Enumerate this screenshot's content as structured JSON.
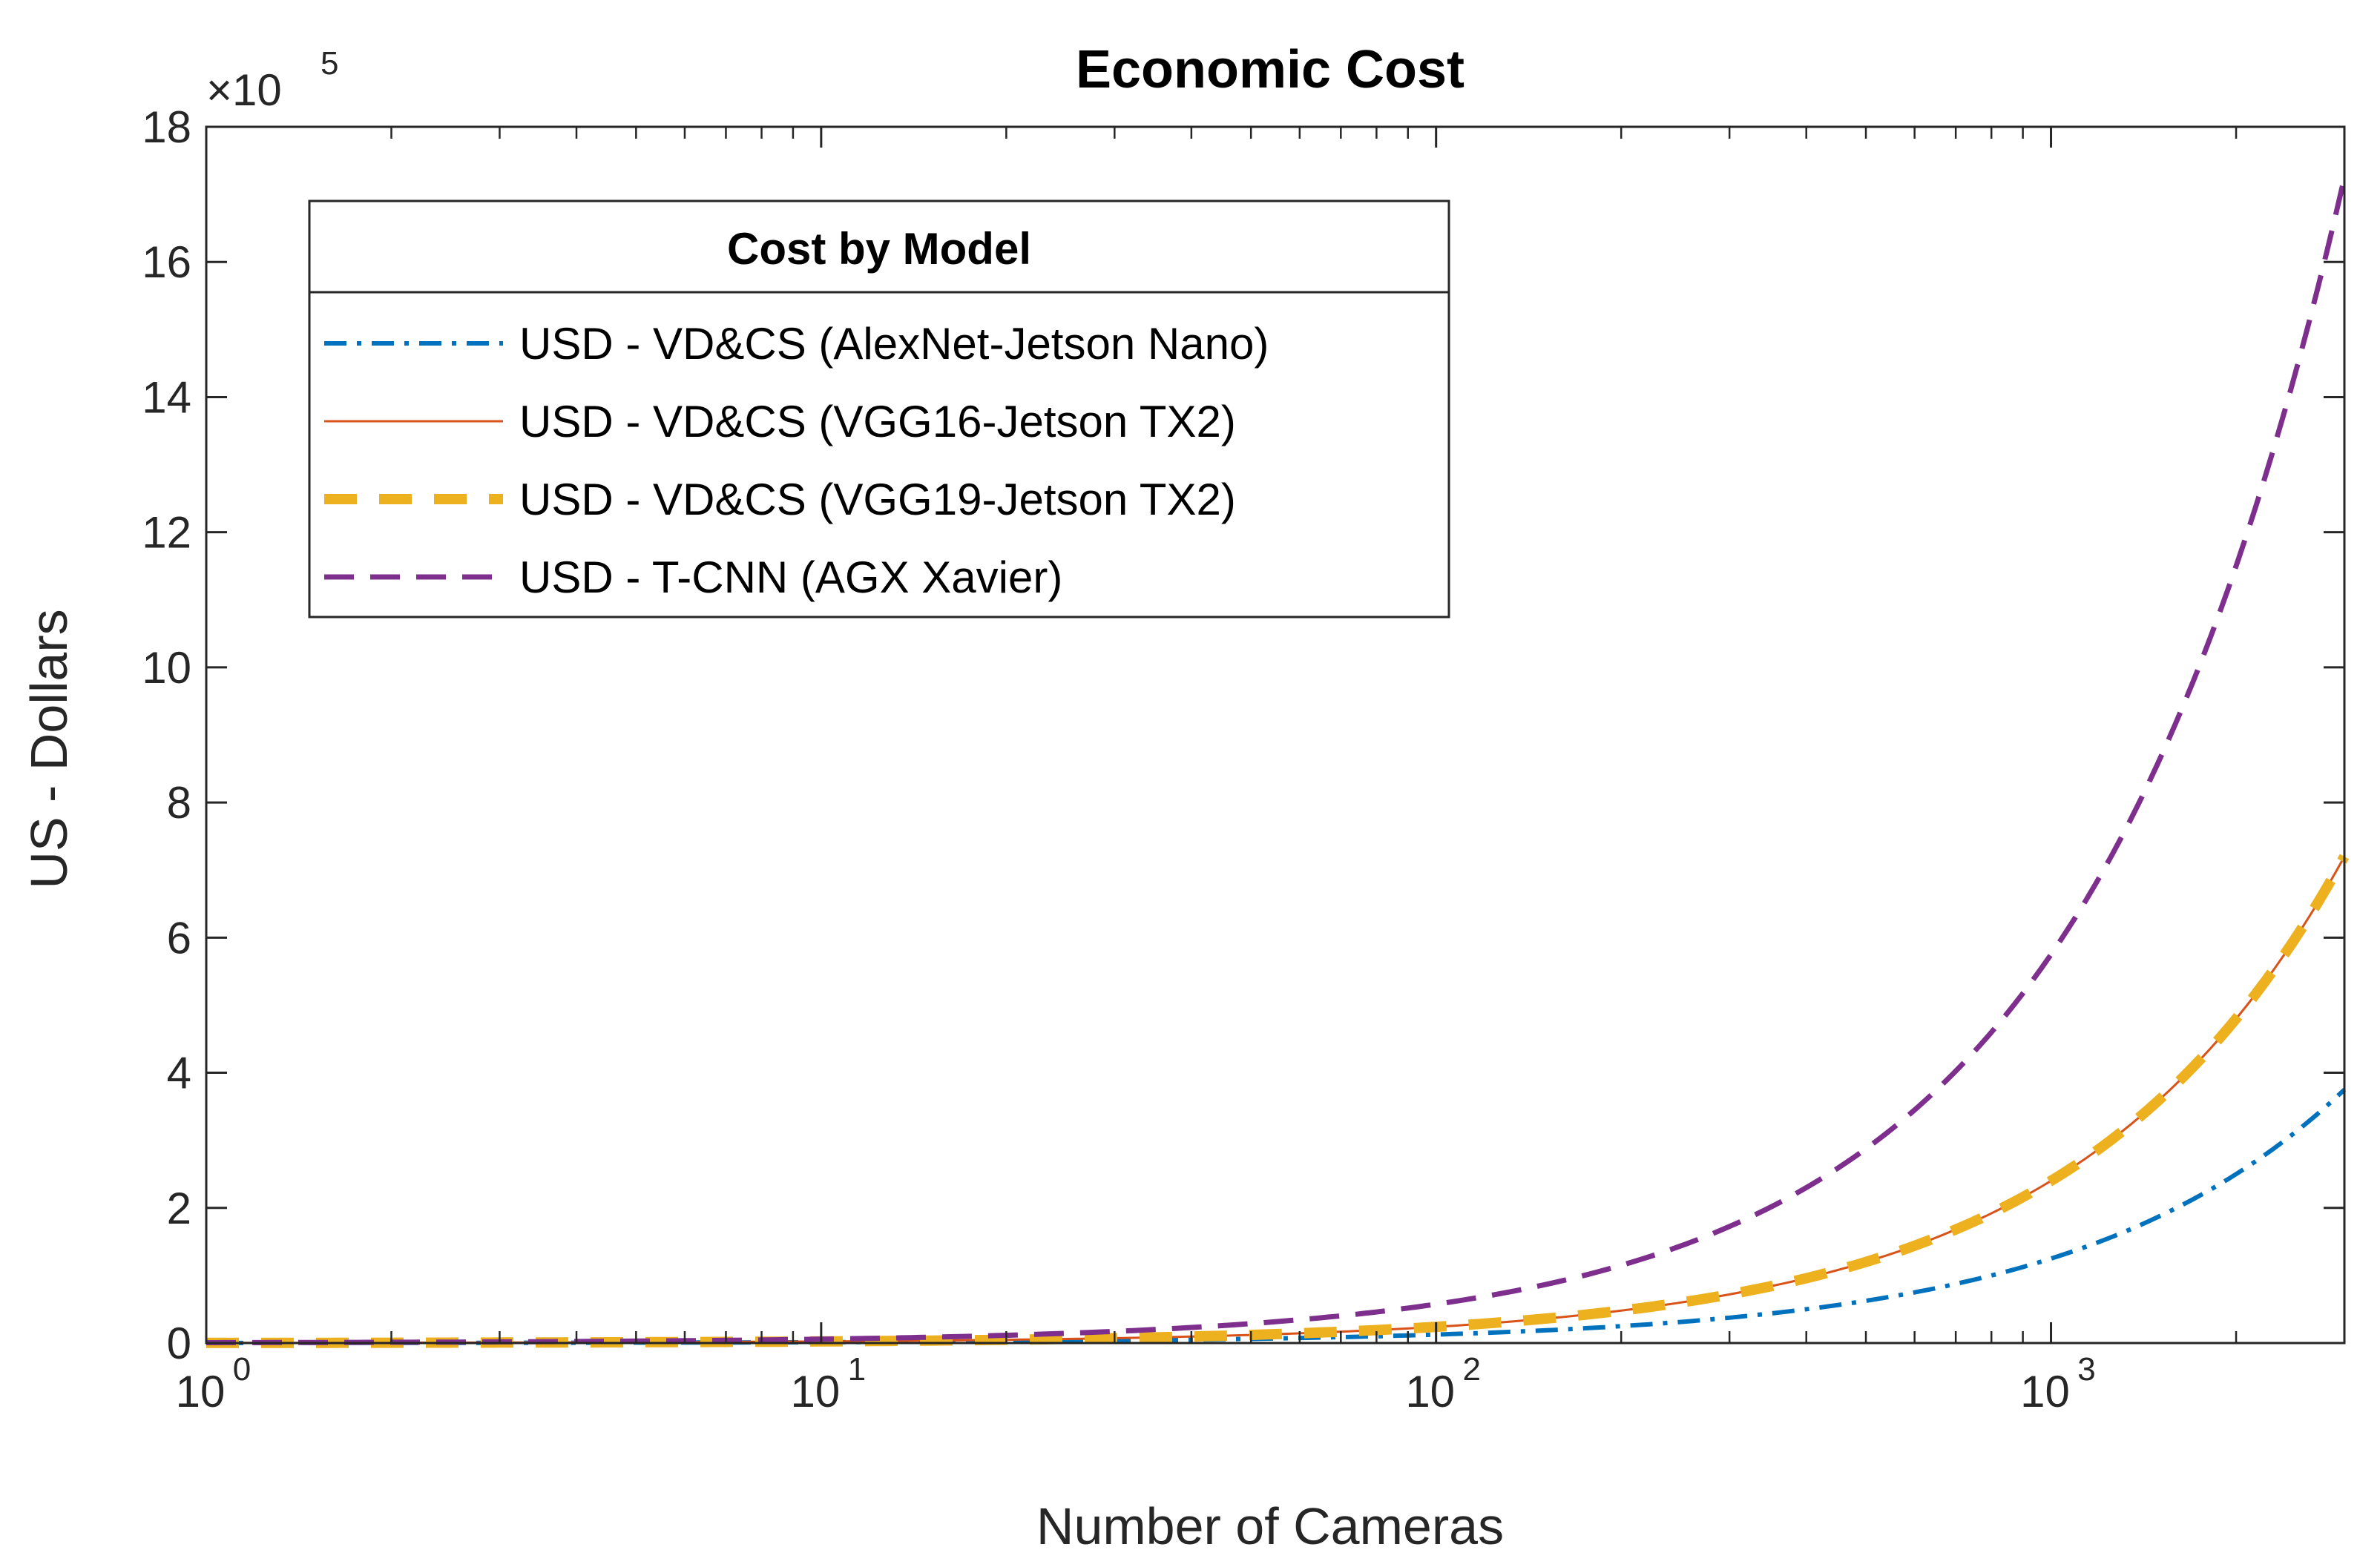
{
  "chart_data": {
    "type": "line",
    "title": "Economic Cost",
    "xlabel": "Number of Cameras",
    "ylabel": "US - Dollars",
    "xscale": "log",
    "xlim": [
      1,
      3000
    ],
    "ylim": [
      0,
      1800000
    ],
    "y_exponent_label": "×10",
    "y_exponent_power": "5",
    "x_ticks": [
      {
        "value": 1,
        "base": "10",
        "power": "0"
      },
      {
        "value": 10,
        "base": "10",
        "power": "1"
      },
      {
        "value": 100,
        "base": "10",
        "power": "2"
      },
      {
        "value": 1000,
        "base": "10",
        "power": "3"
      }
    ],
    "y_ticks": [
      {
        "value": 0,
        "label": "0"
      },
      {
        "value": 200000,
        "label": "2"
      },
      {
        "value": 400000,
        "label": "4"
      },
      {
        "value": 600000,
        "label": "6"
      },
      {
        "value": 800000,
        "label": "8"
      },
      {
        "value": 1000000,
        "label": "10"
      },
      {
        "value": 1200000,
        "label": "12"
      },
      {
        "value": 1400000,
        "label": "14"
      },
      {
        "value": 1600000,
        "label": "16"
      },
      {
        "value": 1800000,
        "label": "18"
      }
    ],
    "legend_title": "Cost by Model",
    "legend_position": "top-left",
    "series": [
      {
        "name": "USD - VD&CS (AlexNet-Jetson Nano)",
        "color": "#0072BD",
        "style": "dashdot",
        "cost_per_camera": 125
      },
      {
        "name": "USD - VD&CS (VGG16-Jetson TX2)",
        "color": "#D95319",
        "style": "solid",
        "cost_per_camera": 240
      },
      {
        "name": "USD - VD&CS (VGG19-Jetson TX2)",
        "color": "#EDB120",
        "style": "dashed-thick",
        "cost_per_camera": 240
      },
      {
        "name": "USD - T-CNN (AGX Xavier)",
        "color": "#7E2F8E",
        "style": "dashed",
        "cost_per_camera": 575
      }
    ],
    "x_samples": [
      1,
      2,
      5,
      10,
      20,
      50,
      100,
      200,
      300,
      500,
      700,
      1000,
      1500,
      2000,
      2500,
      3000
    ]
  }
}
